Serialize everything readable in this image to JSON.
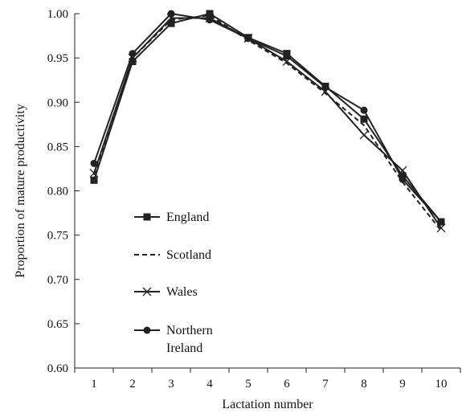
{
  "chart_data": {
    "type": "line",
    "title": "",
    "xlabel": "Lactation number",
    "ylabel": "Proportion of mature productivity",
    "xlim": [
      0.5,
      10.5
    ],
    "ylim": [
      0.6,
      1.0
    ],
    "x": [
      1,
      2,
      3,
      4,
      5,
      6,
      7,
      8,
      9,
      10
    ],
    "x_tick_labels": [
      "1",
      "2",
      "3",
      "4",
      "5",
      "6",
      "7",
      "8",
      "9",
      "10"
    ],
    "y_ticks": [
      0.6,
      0.65,
      0.7,
      0.75,
      0.8,
      0.85,
      0.9,
      0.95,
      1.0
    ],
    "y_tick_labels": [
      "0.60",
      "0.65",
      "0.70",
      "0.75",
      "0.80",
      "0.85",
      "0.90",
      "0.95",
      "1.00"
    ],
    "grid": false,
    "legend_position": "lower-left",
    "series": [
      {
        "name": "England",
        "style": "solid",
        "marker": "square",
        "color": "#222222",
        "values": [
          0.812,
          0.946,
          0.989,
          1.0,
          0.973,
          0.955,
          0.918,
          0.881,
          0.817,
          0.765
        ]
      },
      {
        "name": "Scotland",
        "style": "dashed",
        "marker": "none",
        "color": "#222222",
        "values": [
          0.818,
          0.95,
          0.993,
          0.998,
          0.97,
          0.944,
          0.91,
          0.874,
          0.81,
          0.755
        ]
      },
      {
        "name": "Wales",
        "style": "solid",
        "marker": "x",
        "color": "#222222",
        "values": [
          0.82,
          0.95,
          0.995,
          0.995,
          0.972,
          0.946,
          0.912,
          0.863,
          0.823,
          0.758
        ]
      },
      {
        "name": "Northern\nIreland",
        "style": "solid",
        "marker": "circle",
        "color": "#222222",
        "values": [
          0.831,
          0.955,
          1.0,
          0.993,
          0.972,
          0.952,
          0.917,
          0.891,
          0.813,
          0.765
        ]
      }
    ]
  }
}
